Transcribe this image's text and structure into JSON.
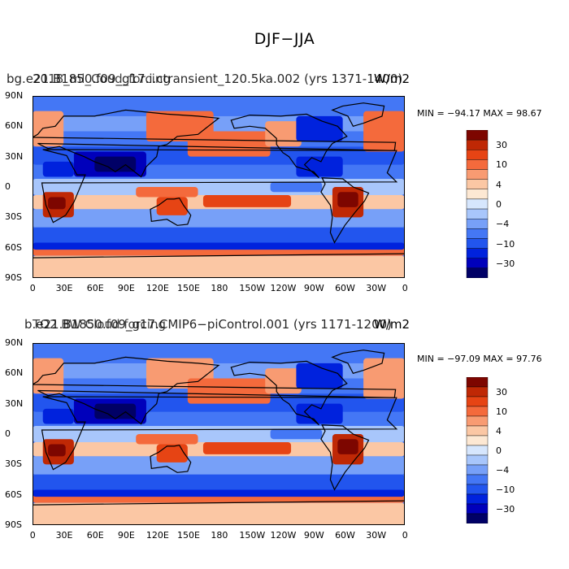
{
  "figure_title": "DJF−JJA",
  "panels": [
    {
      "title": "bg.e21.B1850.f09_g17.i.ctransient_120.5ka.002 (yrs 1371-1400)",
      "overlay_label": "2018_ml_Coud_forcing",
      "units": "W/m2",
      "stats": "MIN = −94.17  MAX =  98.67"
    },
    {
      "title": "b.e21.B1850.f09_g17.CMIP6−piControl.001 (yrs 1171-1200)",
      "overlay_label": "TO2 BW Cloud forcing",
      "units": "W/m2",
      "stats": "MIN = −97.09  MAX =  97.76"
    }
  ],
  "chart_data": {
    "type": "heatmap",
    "title": "DJF−JJA",
    "variable": "Cloud forcing difference (DJF minus JJA)",
    "units": "W/m2",
    "x_ticks": [
      "0",
      "30E",
      "60E",
      "90E",
      "120E",
      "150E",
      "180",
      "150W",
      "120W",
      "90W",
      "60W",
      "30W",
      "0"
    ],
    "y_ticks": [
      "90N",
      "60N",
      "30N",
      "0",
      "30S",
      "60S",
      "90S"
    ],
    "xlim": [
      0,
      360
    ],
    "ylim": [
      -90,
      90
    ],
    "colorbar": {
      "levels": [
        -40,
        -30,
        -20,
        -10,
        -6,
        -4,
        -2,
        0,
        2,
        4,
        6,
        10,
        20,
        30,
        40
      ],
      "labels": [
        "30",
        "10",
        "4",
        "0",
        "−4",
        "−10",
        "−30"
      ],
      "colors": [
        "#000066",
        "#0000bb",
        "#0022dd",
        "#2255ee",
        "#4477f5",
        "#77a0f8",
        "#a8c6fb",
        "#d6e6fd",
        "#fde8d3",
        "#fbc7a4",
        "#f89b72",
        "#f46a3c",
        "#e64414",
        "#bf2805",
        "#7d0600"
      ]
    },
    "panels": [
      {
        "name": "bg.e21.B1850.f09_g17.i.ctransient_120.5ka.002 (yrs 1371-1400)",
        "min": -94.17,
        "max": 98.67
      },
      {
        "name": "b.e21.B1850.f09_g17.CMIP6−piControl.001 (yrs 1171-1200)",
        "min": -97.09,
        "max": 97.76
      }
    ]
  }
}
